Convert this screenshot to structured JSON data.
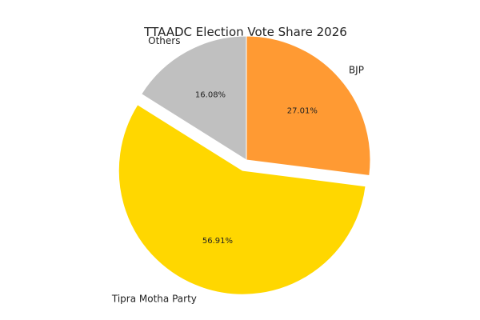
{
  "chart_data": {
    "type": "pie",
    "title": "TTAADC Election Vote Share 2026",
    "slices": [
      {
        "label": "BJP",
        "value": 27.01,
        "pct_label": "27.01%",
        "color": "#FF9A33",
        "exploded": false
      },
      {
        "label": "Tipra Motha Party",
        "value": 56.91,
        "pct_label": "56.91%",
        "color": "#FFD700",
        "exploded": true
      },
      {
        "label": "Others",
        "value": 16.08,
        "pct_label": "16.08%",
        "color": "#C0C0C0",
        "exploded": false
      }
    ],
    "start_angle_deg": 90,
    "direction": "clockwise",
    "legend": "none"
  }
}
